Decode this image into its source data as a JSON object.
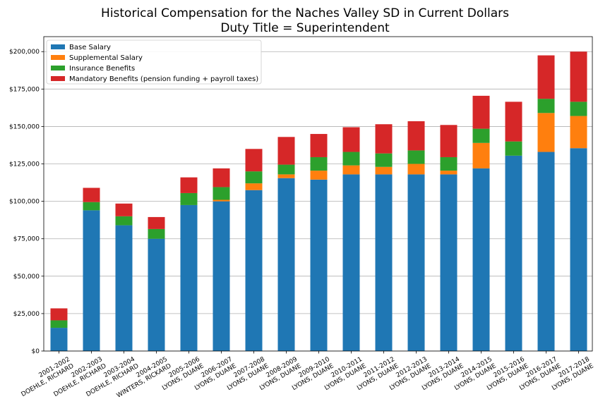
{
  "chart_data": {
    "type": "bar",
    "stacked": true,
    "title": "Historical Compensation for the Naches Valley SD in Current Dollars",
    "subtitle": "Duty Title = Superintendent",
    "xlabel": "",
    "ylabel": "",
    "ylim": [
      0,
      210000
    ],
    "yticks": [
      "$0",
      "$25,000",
      "$50,000",
      "$75,000",
      "$100,000",
      "$125,000",
      "$150,000",
      "$175,000",
      "$200,000"
    ],
    "ytick_values": [
      0,
      25000,
      50000,
      75000,
      100000,
      125000,
      150000,
      175000,
      200000
    ],
    "grid": "horizontal",
    "legend_position": "top-left",
    "categories": [
      [
        "2001-2002",
        "DOEHLE, RICHARD"
      ],
      [
        "2002-2003",
        "DOEHLE, RICHARD"
      ],
      [
        "2003-2004",
        "DOEHLE, RICHARD"
      ],
      [
        "2004-2005",
        "WINTERS, RICKARD"
      ],
      [
        "2005-2006",
        "LYONS, DUANE"
      ],
      [
        "2006-2007",
        "LYONS, DUANE"
      ],
      [
        "2007-2008",
        "LYONS, DUANE"
      ],
      [
        "2008-2009",
        "LYONS, DUANE"
      ],
      [
        "2009-2010",
        "LYONS, DUANE"
      ],
      [
        "2010-2011",
        "LYONS, DUANE"
      ],
      [
        "2011-2012",
        "LYONS, DUANE"
      ],
      [
        "2012-2013",
        "LYONS, DUANE"
      ],
      [
        "2013-2014",
        "LYONS, DUANE"
      ],
      [
        "2014-2015",
        "LYONS, DUANE"
      ],
      [
        "2015-2016",
        "LYONS, DUANE"
      ],
      [
        "2016-2017",
        "LYONS, DUANE"
      ],
      [
        "2017-2018",
        "LYONS, DUANE"
      ]
    ],
    "series": [
      {
        "name": "Base Salary",
        "color": "#1f77b4",
        "values": [
          15500,
          94000,
          84000,
          75000,
          97500,
          100000,
          107500,
          115500,
          114500,
          118000,
          118000,
          118000,
          118000,
          122000,
          130500,
          133000,
          135500
        ]
      },
      {
        "name": "Supplemental Salary",
        "color": "#ff7f0e",
        "values": [
          0,
          0,
          0,
          0,
          0,
          1000,
          4500,
          2500,
          6000,
          6000,
          5000,
          7000,
          2500,
          17000,
          0,
          26000,
          21500
        ]
      },
      {
        "name": "Insurance Benefits",
        "color": "#2ca02c",
        "values": [
          5000,
          5500,
          6000,
          6500,
          8000,
          8500,
          8000,
          6500,
          9000,
          9000,
          9000,
          9000,
          9000,
          9500,
          9500,
          9500,
          9500
        ]
      },
      {
        "name": "Mandatory Benefits (pension funding + payroll taxes)",
        "color": "#d62728",
        "values": [
          8000,
          9500,
          8500,
          8000,
          10500,
          12500,
          15000,
          18500,
          15500,
          16500,
          19500,
          19500,
          21500,
          22000,
          26500,
          29000,
          33500
        ]
      }
    ]
  }
}
